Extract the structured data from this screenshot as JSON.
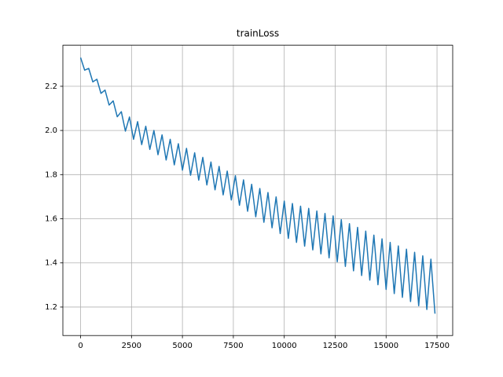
{
  "chart_data": {
    "type": "line",
    "title": "trainLoss",
    "color": "#1f77b4",
    "grid": true,
    "x": [
      0,
      200,
      400,
      600,
      800,
      1000,
      1200,
      1400,
      1600,
      1800,
      2000,
      2200,
      2400,
      2600,
      2800,
      3000,
      3200,
      3400,
      3600,
      3800,
      4000,
      4200,
      4400,
      4600,
      4800,
      5000,
      5200,
      5400,
      5600,
      5800,
      6000,
      6200,
      6400,
      6600,
      6800,
      7000,
      7200,
      7400,
      7600,
      7800,
      8000,
      8200,
      8400,
      8600,
      8800,
      9000,
      9200,
      9400,
      9600,
      9800,
      10000,
      10200,
      10400,
      10600,
      10800,
      11000,
      11200,
      11400,
      11600,
      11800,
      12000,
      12200,
      12400,
      12600,
      12800,
      13000,
      13200,
      13400,
      13600,
      13800,
      14000,
      14200,
      14400,
      14600,
      14800,
      15000,
      15200,
      15400,
      15600,
      15800,
      16000,
      16200,
      16400,
      16600,
      16800,
      17000,
      17200,
      17400
    ],
    "values": [
      2.33,
      2.273,
      2.281,
      2.22,
      2.232,
      2.168,
      2.183,
      2.115,
      2.134,
      2.062,
      2.085,
      1.997,
      2.061,
      1.96,
      2.04,
      1.936,
      2.019,
      1.914,
      2.0,
      1.89,
      1.98,
      1.866,
      1.96,
      1.844,
      1.94,
      1.82,
      1.919,
      1.797,
      1.899,
      1.775,
      1.878,
      1.753,
      1.857,
      1.731,
      1.837,
      1.708,
      1.816,
      1.685,
      1.795,
      1.661,
      1.776,
      1.634,
      1.756,
      1.609,
      1.737,
      1.584,
      1.719,
      1.559,
      1.699,
      1.533,
      1.68,
      1.511,
      1.669,
      1.493,
      1.657,
      1.476,
      1.647,
      1.459,
      1.635,
      1.441,
      1.624,
      1.423,
      1.613,
      1.405,
      1.596,
      1.384,
      1.578,
      1.364,
      1.561,
      1.343,
      1.544,
      1.322,
      1.526,
      1.301,
      1.509,
      1.28,
      1.493,
      1.261,
      1.477,
      1.244,
      1.462,
      1.225,
      1.448,
      1.206,
      1.432,
      1.189,
      1.417,
      1.17
    ],
    "xlim": [
      -870,
      18270
    ],
    "xticks": [
      0,
      2500,
      5000,
      7500,
      10000,
      12500,
      15000,
      17500
    ],
    "ylim": [
      1.071,
      2.386
    ],
    "yticks": [
      1.2,
      1.4,
      1.6,
      1.8,
      {
        "value": 2,
        "label": "2.0"
      },
      2.2
    ]
  }
}
